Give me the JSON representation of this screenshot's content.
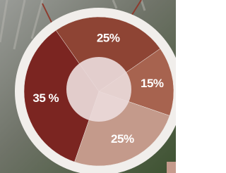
{
  "chart_data": {
    "type": "pie",
    "values": [
      25,
      15,
      25,
      35
    ],
    "value_labels": [
      "25%",
      "15%",
      "25%",
      "35 %"
    ],
    "colors": [
      "#8e4434",
      "#a7634f",
      "#c49a8b",
      "#7b2521"
    ]
  }
}
